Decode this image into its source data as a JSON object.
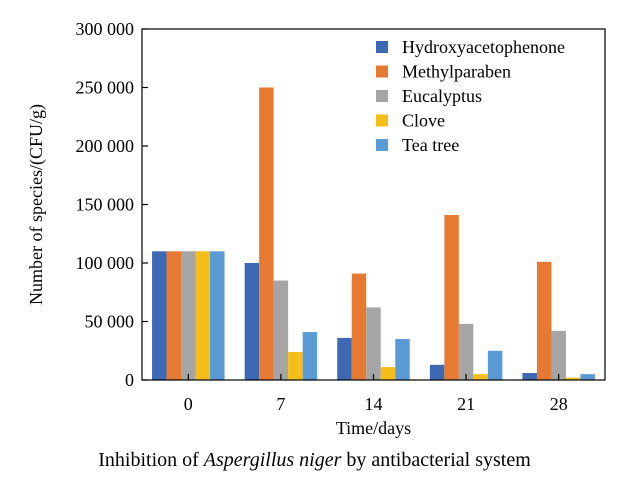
{
  "chart_data": {
    "type": "bar",
    "xlabel": "Time/days",
    "ylabel": "Number of species/(CFU/g)",
    "categories": [
      "0",
      "7",
      "14",
      "21",
      "28"
    ],
    "ylim": [
      0,
      300000
    ],
    "yticks": [
      0,
      50000,
      100000,
      150000,
      200000,
      250000,
      300000
    ],
    "ytick_labels": [
      "0",
      "50 000",
      "100 000",
      "150 000",
      "200 000",
      "250 000",
      "300 000"
    ],
    "legend_position": "top-right",
    "series": [
      {
        "name": "Hydroxyacetophenone",
        "color": "#3C68B4",
        "values": [
          110000,
          100000,
          36000,
          13000,
          6000
        ]
      },
      {
        "name": "Methylparaben",
        "color": "#E67A32",
        "values": [
          110000,
          250000,
          91000,
          141000,
          101000
        ]
      },
      {
        "name": "Eucalyptus",
        "color": "#A5A5A5",
        "values": [
          110000,
          85000,
          62000,
          48000,
          42000
        ]
      },
      {
        "name": "Clove",
        "color": "#F6BE1A",
        "values": [
          110000,
          24000,
          11000,
          5000,
          2000
        ]
      },
      {
        "name": "Tea tree",
        "color": "#5B9BD5",
        "values": [
          110000,
          41000,
          35000,
          25000,
          5000
        ]
      }
    ]
  },
  "caption": {
    "prefix": "Inhibition of ",
    "species": "Aspergillus niger",
    "suffix": " by antibacterial system"
  }
}
